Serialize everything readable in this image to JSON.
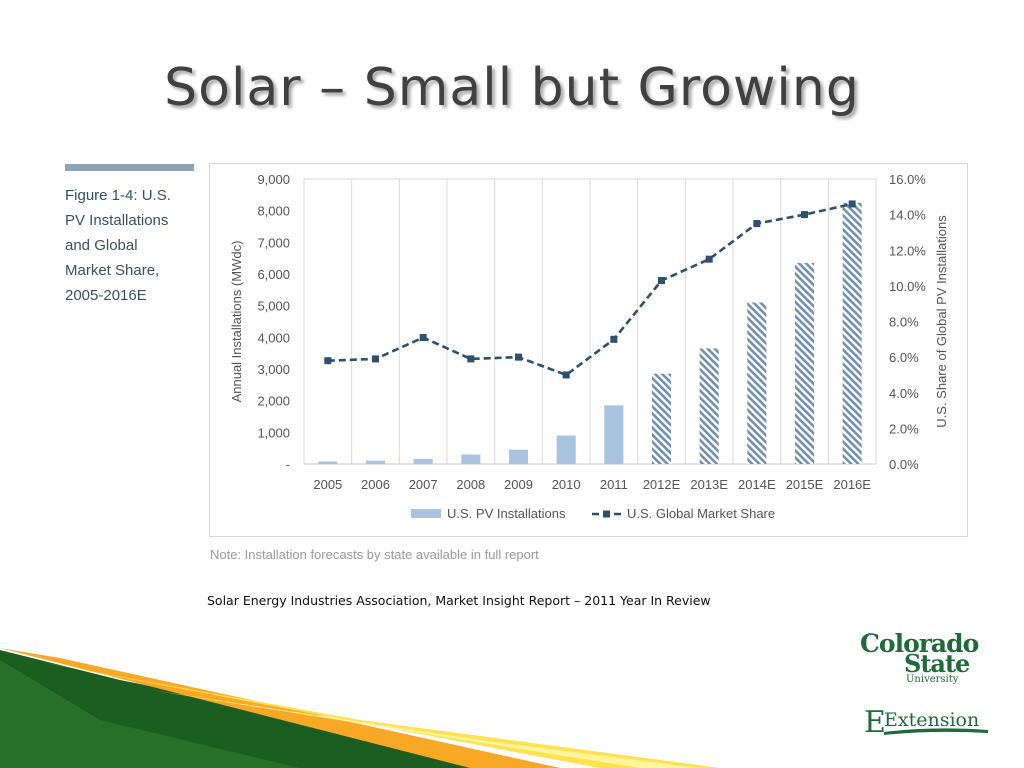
{
  "slide": {
    "title": "Solar – Small but Growing",
    "figure_caption_label": "Figure 1-4:",
    "figure_caption_lines": [
      "U.S.",
      "PV Installations",
      "and Global",
      "Market Share,",
      "2005-2016E"
    ],
    "note": "Note: Installation forecasts by state available in full report",
    "source": "Solar Energy Industries Association, Market Insight Report – 2011 Year In Review"
  },
  "logos": {
    "university_line1": "Colorado",
    "university_line2": "State",
    "university_line3": "University",
    "extension": "Extension"
  },
  "colors": {
    "bar_actual": "#a9c3e0",
    "bar_forecast": "#6f8fb3",
    "line": "#2f4f6f",
    "title": "#404040",
    "logo_green": "#1e6b3a"
  },
  "chart_data": {
    "type": "bar",
    "categories": [
      "2005",
      "2006",
      "2007",
      "2008",
      "2009",
      "2010",
      "2011",
      "2012E",
      "2013E",
      "2014E",
      "2015E",
      "2016E"
    ],
    "series": [
      {
        "name": "U.S. PV Installations",
        "type": "bar",
        "axis": "left",
        "values": [
          80,
          105,
          160,
          300,
          450,
          900,
          1850,
          2850,
          3650,
          5100,
          6350,
          8250
        ],
        "forecast_from_index": 7
      },
      {
        "name": "U.S. Global Market Share",
        "type": "line",
        "axis": "right",
        "values": [
          5.8,
          5.9,
          7.1,
          5.9,
          6.0,
          5.0,
          7.0,
          10.3,
          11.5,
          13.5,
          14.0,
          14.6
        ]
      }
    ],
    "ylabel": "Annual Installations (MWdc)",
    "y2label": "U.S. Share of Global PV Installations",
    "ylim": [
      0,
      9000
    ],
    "y2lim": [
      0,
      16
    ],
    "yticks": [
      "-",
      "1,000",
      "2,000",
      "3,000",
      "4,000",
      "5,000",
      "6,000",
      "7,000",
      "8,000",
      "9,000"
    ],
    "y2ticks": [
      "0.0%",
      "2.0%",
      "4.0%",
      "6.0%",
      "8.0%",
      "10.0%",
      "12.0%",
      "14.0%",
      "16.0%"
    ],
    "grid": "vertical",
    "legend": "bottom"
  }
}
